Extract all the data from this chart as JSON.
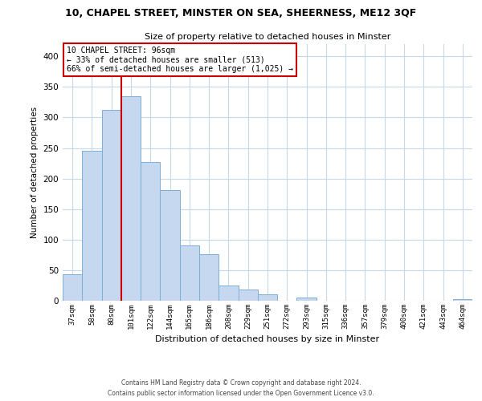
{
  "title": "10, CHAPEL STREET, MINSTER ON SEA, SHEERNESS, ME12 3QF",
  "subtitle": "Size of property relative to detached houses in Minster",
  "xlabel": "Distribution of detached houses by size in Minster",
  "ylabel": "Number of detached properties",
  "categories": [
    "37sqm",
    "58sqm",
    "80sqm",
    "101sqm",
    "122sqm",
    "144sqm",
    "165sqm",
    "186sqm",
    "208sqm",
    "229sqm",
    "251sqm",
    "272sqm",
    "293sqm",
    "315sqm",
    "336sqm",
    "357sqm",
    "379sqm",
    "400sqm",
    "421sqm",
    "443sqm",
    "464sqm"
  ],
  "values": [
    43,
    245,
    312,
    335,
    227,
    181,
    91,
    76,
    25,
    18,
    10,
    0,
    5,
    0,
    0,
    0,
    0,
    0,
    0,
    0,
    2
  ],
  "bar_color": "#c5d8f0",
  "bar_edge_color": "#7bafd4",
  "highlight_index": 3,
  "highlight_line_color": "#cc0000",
  "ylim": [
    0,
    420
  ],
  "yticks": [
    0,
    50,
    100,
    150,
    200,
    250,
    300,
    350,
    400
  ],
  "annotation_text_line1": "10 CHAPEL STREET: 96sqm",
  "annotation_text_line2": "← 33% of detached houses are smaller (513)",
  "annotation_text_line3": "66% of semi-detached houses are larger (1,025) →",
  "annotation_box_color": "#ffffff",
  "annotation_box_edge": "#cc0000",
  "footer_line1": "Contains HM Land Registry data © Crown copyright and database right 2024.",
  "footer_line2": "Contains public sector information licensed under the Open Government Licence v3.0.",
  "background_color": "#ffffff",
  "grid_color": "#c8d8ea"
}
